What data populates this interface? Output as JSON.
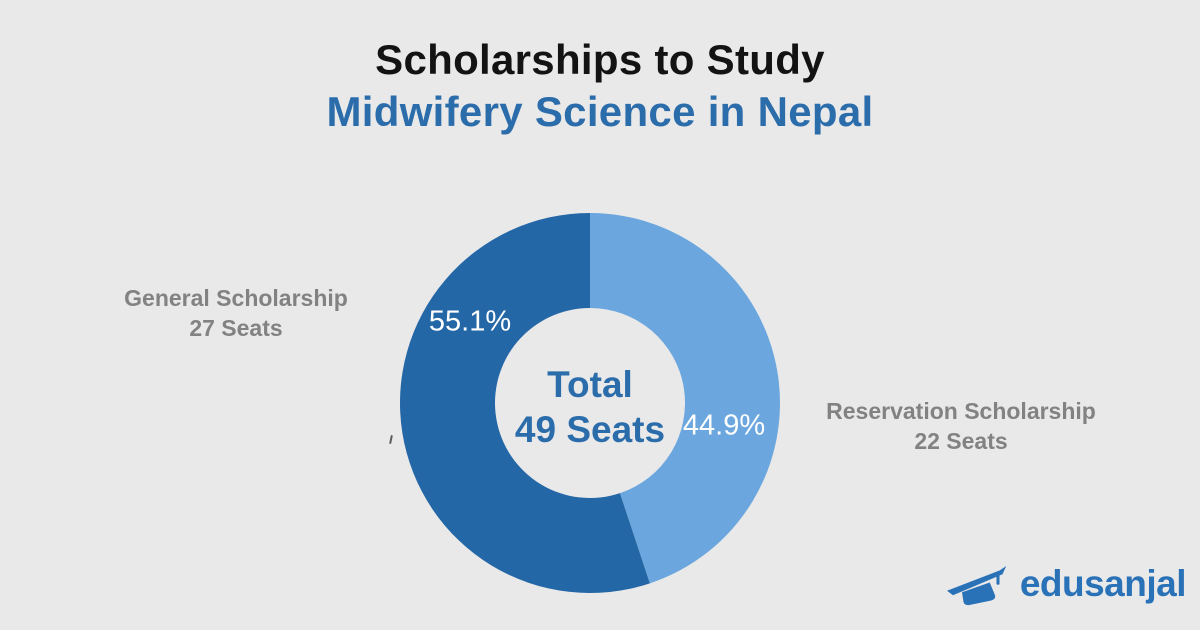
{
  "page": {
    "background": "#e9e9e9",
    "title_line1": "Scholarships to Study",
    "title_line2": "Midwifery Science in Nepal",
    "title_line2_color": "#2b6cab"
  },
  "chart_data": {
    "type": "pie",
    "variant": "donut",
    "title": "Scholarships to Study Midwifery Science in Nepal",
    "direction": "clockwise",
    "start_angle_deg": 0,
    "inner_radius_ratio": 0.5,
    "total": {
      "label": "Total",
      "value_label": "49 Seats",
      "seats": 49
    },
    "segments": [
      {
        "label": "Reservation Scholarship",
        "seats": 22,
        "seats_label": "22 Seats",
        "percent": 44.9,
        "percent_label": "44.9%",
        "color": "#6ba7de"
      },
      {
        "label": "General Scholarship",
        "seats": 27,
        "seats_label": "27 Seats",
        "percent": 55.1,
        "percent_label": "55.1%",
        "color": "#2467a7"
      }
    ],
    "legend_position": "side-callouts",
    "grid": false
  },
  "logo": {
    "text": "edusanjal",
    "color": "#2a72b8",
    "icon": "graduation-cap-icon"
  }
}
